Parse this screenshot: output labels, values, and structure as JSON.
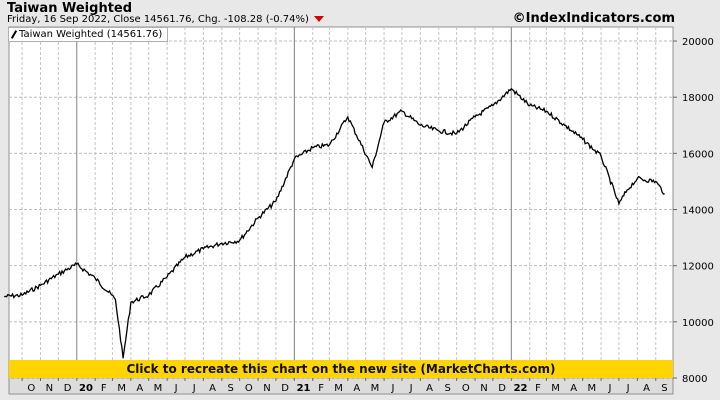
{
  "header": {
    "title": "Taiwan Weighted",
    "subtitle": "Friday, 16 Sep 2022, Close 14561.76, Chg. -108.28 (-0.74%)",
    "brand": "©IndexIndicators.com"
  },
  "legend": {
    "label": "Taiwan Weighted (14561.76)"
  },
  "banner": {
    "label": "Click to recreate this chart on the new site (MarketCharts.com)"
  },
  "colors": {
    "line": "#000000",
    "banner": "#ffd400",
    "down_arrow": "#d80000",
    "plot_bg": "#ffffff",
    "page_bg": "#e8e8e8"
  },
  "chart_data": {
    "type": "line",
    "series": [
      {
        "name": "Taiwan Weighted",
        "x": [
          "2019-09",
          "2019-10",
          "2019-11",
          "2019-12",
          "2020-01",
          "2020-02",
          "2020-03-06",
          "2020-03-19",
          "2020-04",
          "2020-05",
          "2020-06",
          "2020-07",
          "2020-08",
          "2020-09",
          "2020-10",
          "2020-11",
          "2020-12",
          "2021-01",
          "2021-02",
          "2021-03",
          "2021-04",
          "2021-05-12",
          "2021-06",
          "2021-07",
          "2021-08",
          "2021-09",
          "2021-10",
          "2021-11",
          "2021-12",
          "2022-01",
          "2022-02",
          "2022-03",
          "2022-04",
          "2022-05",
          "2022-06",
          "2022-07-01",
          "2022-07-15",
          "2022-08",
          "2022-09-01",
          "2022-09-16"
        ],
        "y": [
          10900,
          10950,
          11300,
          11700,
          12050,
          11550,
          10800,
          8700,
          10700,
          10950,
          11600,
          12300,
          12600,
          12800,
          12900,
          13700,
          14300,
          15800,
          16200,
          16300,
          17300,
          15500,
          17100,
          17500,
          17000,
          16800,
          16700,
          17300,
          17700,
          18300,
          17700,
          17500,
          17000,
          16500,
          15900,
          14200,
          14700,
          15100,
          15000,
          14561.76
        ]
      }
    ],
    "x_tick_labels": [
      "O",
      "N",
      "D",
      "20",
      "F",
      "M",
      "A",
      "M",
      "J",
      "J",
      "A",
      "S",
      "O",
      "N",
      "D",
      "21",
      "F",
      "M",
      "A",
      "M",
      "J",
      "J",
      "A",
      "S",
      "O",
      "N",
      "D",
      "22",
      "F",
      "M",
      "A",
      "M",
      "J",
      "J",
      "A",
      "S"
    ],
    "y_tick_labels": [
      "8000",
      "10000",
      "12000",
      "14000",
      "16000",
      "18000",
      "20000"
    ],
    "ylim": [
      8000,
      20500
    ],
    "grid": true
  }
}
